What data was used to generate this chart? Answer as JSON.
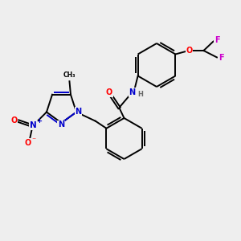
{
  "background_color": "#eeeeee",
  "figsize": [
    3.0,
    3.0
  ],
  "dpi": 100,
  "colors": {
    "C": "#000000",
    "N": "#0000cc",
    "O": "#ff0000",
    "F": "#cc00cc",
    "H": "#666666",
    "bond": "#000000"
  },
  "lw": 1.4,
  "doff": 0.04,
  "fs": 7.0
}
